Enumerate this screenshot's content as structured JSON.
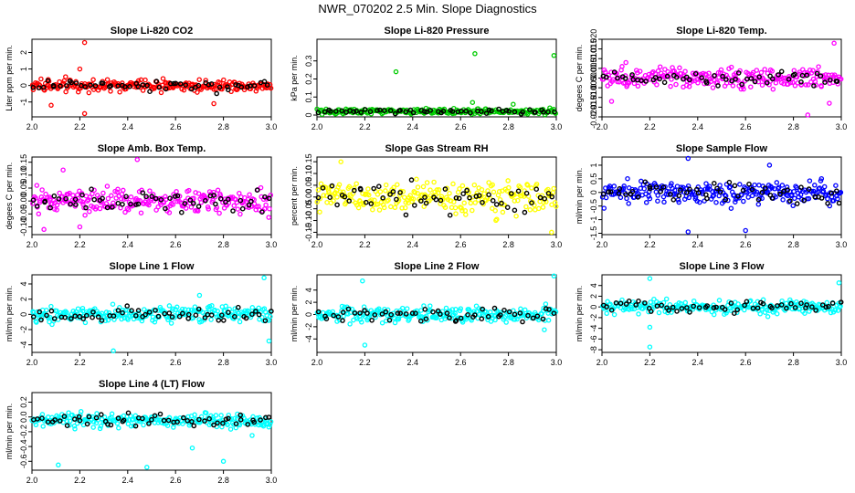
{
  "title": "NWR_070202  2.5 Min. Slope Diagnostics",
  "colors": {
    "red": "#ff0000",
    "green": "#00cc00",
    "magenta": "#ff00ff",
    "yellow": "#ffff00",
    "blue": "#0000ff",
    "cyan": "#00ffff",
    "black": "#000000"
  },
  "chart_data": [
    {
      "type": "scatter",
      "title": "Slope Li-820 CO2",
      "ylabel": "Liter ppm per min.",
      "xlim": [
        2.0,
        3.0
      ],
      "ylim": [
        -1.9,
        2.8
      ],
      "xticks": [
        2.0,
        2.2,
        2.4,
        2.6,
        2.8,
        3.0
      ],
      "yticks": [
        -1,
        0,
        1,
        2
      ],
      "color": "red",
      "spread": 0.35,
      "bias": 0.0,
      "outliers": [
        [
          2.22,
          2.6
        ],
        [
          2.22,
          -1.7
        ],
        [
          2.08,
          -1.2
        ],
        [
          2.2,
          1.0
        ],
        [
          2.76,
          -1.1
        ]
      ]
    },
    {
      "type": "scatter",
      "title": "Slope Li-820 Pressure",
      "ylabel": "kPa per min.",
      "xlim": [
        2.0,
        3.0
      ],
      "ylim": [
        -0.01,
        0.42
      ],
      "xticks": [
        2.0,
        2.2,
        2.4,
        2.6,
        2.8,
        3.0
      ],
      "yticks": [
        0.0,
        0.1,
        0.2,
        0.3
      ],
      "color": "green",
      "spread": 0.015,
      "bias": 0.02,
      "outliers": [
        [
          2.33,
          0.24
        ],
        [
          2.66,
          0.34
        ],
        [
          2.99,
          0.33
        ],
        [
          2.65,
          0.07
        ],
        [
          2.82,
          0.06
        ]
      ]
    },
    {
      "type": "scatter",
      "title": "Slope Li-820 Temp.",
      "ylabel": "degees C per min.",
      "xlim": [
        2.0,
        3.0
      ],
      "ylim": [
        -0.02,
        0.02
      ],
      "xticks": [
        2.0,
        2.2,
        2.4,
        2.6,
        2.8,
        3.0
      ],
      "yticks": [
        -0.02,
        -0.015,
        -0.01,
        -0.005,
        0.0,
        0.005,
        0.01,
        0.015,
        0.02
      ],
      "ytick_labels": [
        "-0.020",
        "-0.015",
        "-0.010",
        "-0.005",
        "0.000",
        "0.005",
        "0.010",
        "0.015",
        "0.020"
      ],
      "color": "magenta",
      "spread": 0.005,
      "bias": 0.0,
      "outliers": [
        [
          2.97,
          0.018
        ],
        [
          2.86,
          -0.019
        ],
        [
          2.1,
          0.008
        ],
        [
          2.04,
          -0.012
        ],
        [
          2.95,
          -0.013
        ]
      ]
    },
    {
      "type": "scatter",
      "title": "Slope Amb. Box Temp.",
      "ylabel": "degees C per min.",
      "xlim": [
        2.0,
        3.0
      ],
      "ylim": [
        -0.13,
        0.17
      ],
      "xticks": [
        2.0,
        2.2,
        2.4,
        2.6,
        2.8,
        3.0
      ],
      "yticks": [
        -0.1,
        -0.05,
        0.0,
        0.05,
        0.1,
        0.15
      ],
      "ytick_labels": [
        "-0.10",
        "-0.05",
        "0.00",
        "0.05",
        "0.10",
        "0.15"
      ],
      "color": "magenta",
      "spread": 0.045,
      "bias": 0.0,
      "outliers": [
        [
          2.44,
          0.16
        ],
        [
          2.13,
          0.12
        ],
        [
          2.05,
          -0.11
        ],
        [
          2.2,
          -0.1
        ]
      ]
    },
    {
      "type": "scatter",
      "title": "Slope Gas Stream RH",
      "ylabel": "percent per min.",
      "xlim": [
        2.0,
        3.0
      ],
      "ylim": [
        -0.16,
        0.17
      ],
      "xticks": [
        2.0,
        2.2,
        2.4,
        2.6,
        2.8,
        3.0
      ],
      "yticks": [
        -0.15,
        -0.1,
        -0.05,
        0.0,
        0.05,
        0.1,
        0.15
      ],
      "ytick_labels": [
        "-0.15",
        "-0.10",
        "-0.05",
        "0.00",
        "0.05",
        "0.10",
        "0.15"
      ],
      "color": "yellow",
      "spread": 0.065,
      "bias": 0.0,
      "outliers": [
        [
          2.1,
          0.15
        ],
        [
          2.98,
          -0.15
        ]
      ]
    },
    {
      "type": "scatter",
      "title": "Slope Sample Flow",
      "ylabel": "ml/min per min.",
      "xlim": [
        2.0,
        3.0
      ],
      "ylim": [
        -1.55,
        1.3
      ],
      "xticks": [
        2.0,
        2.2,
        2.4,
        2.6,
        2.8,
        3.0
      ],
      "yticks": [
        -1.5,
        -1.0,
        -0.5,
        0.0,
        0.5,
        1.0
      ],
      "ytick_labels": [
        "-1.5",
        "-1",
        "-0.5",
        "0",
        "0.5",
        "1"
      ],
      "color": "blue",
      "spread": 0.4,
      "bias": 0.0,
      "outliers": [
        [
          2.36,
          1.25
        ],
        [
          2.36,
          -1.45
        ],
        [
          2.6,
          -1.4
        ],
        [
          2.7,
          1.0
        ]
      ]
    },
    {
      "type": "scatter",
      "title": "Slope Line 1 Flow",
      "ylabel": "ml/min per min.",
      "xlim": [
        2.0,
        3.0
      ],
      "ylim": [
        -5.0,
        5.2
      ],
      "xticks": [
        2.0,
        2.2,
        2.4,
        2.6,
        2.8,
        3.0
      ],
      "yticks": [
        -4,
        -2,
        0,
        2,
        4
      ],
      "color": "cyan",
      "spread": 1.1,
      "bias": 0.0,
      "outliers": [
        [
          2.97,
          4.8
        ],
        [
          2.99,
          -3.5
        ],
        [
          2.34,
          -4.8
        ],
        [
          2.7,
          2.5
        ]
      ]
    },
    {
      "type": "scatter",
      "title": "Slope Line 2 Flow",
      "ylabel": "ml/min per min.",
      "xlim": [
        2.0,
        3.0
      ],
      "ylim": [
        -6.2,
        6.5
      ],
      "xticks": [
        2.0,
        2.2,
        2.4,
        2.6,
        2.8,
        3.0
      ],
      "yticks": [
        -4,
        -2,
        0,
        2,
        4
      ],
      "color": "cyan",
      "spread": 1.2,
      "bias": 0.0,
      "outliers": [
        [
          2.99,
          6.3
        ],
        [
          2.19,
          5.5
        ],
        [
          2.2,
          -5.0
        ],
        [
          2.95,
          -2.5
        ]
      ]
    },
    {
      "type": "scatter",
      "title": "Slope Line 3 Flow",
      "ylabel": "ml/min per min.",
      "xlim": [
        2.0,
        3.0
      ],
      "ylim": [
        -8.5,
        6.0
      ],
      "xticks": [
        2.0,
        2.2,
        2.4,
        2.6,
        2.8,
        3.0
      ],
      "yticks": [
        -8,
        -6,
        -4,
        -2,
        0,
        2,
        4
      ],
      "color": "cyan",
      "spread": 1.2,
      "bias": 0.0,
      "outliers": [
        [
          2.2,
          5.3
        ],
        [
          2.2,
          -7.5
        ],
        [
          2.2,
          -3.8
        ],
        [
          2.99,
          4.5
        ]
      ]
    },
    {
      "type": "scatter",
      "title": "Slope Line 4 (LT) Flow",
      "ylabel": "ml/min per min.",
      "xlim": [
        2.0,
        3.0
      ],
      "ylim": [
        -0.72,
        0.33
      ],
      "xticks": [
        2.0,
        2.2,
        2.4,
        2.6,
        2.8,
        3.0
      ],
      "yticks": [
        -0.6,
        -0.4,
        -0.2,
        0.0,
        0.2
      ],
      "ytick_labels": [
        "-0.6",
        "-0.4",
        "-0.2",
        "0.0",
        "0.2"
      ],
      "color": "cyan",
      "spread": 0.09,
      "bias": -0.05,
      "outliers": [
        [
          2.11,
          -0.65
        ],
        [
          2.48,
          -0.68
        ],
        [
          2.8,
          -0.6
        ],
        [
          2.67,
          -0.42
        ],
        [
          2.92,
          -0.25
        ]
      ]
    }
  ]
}
